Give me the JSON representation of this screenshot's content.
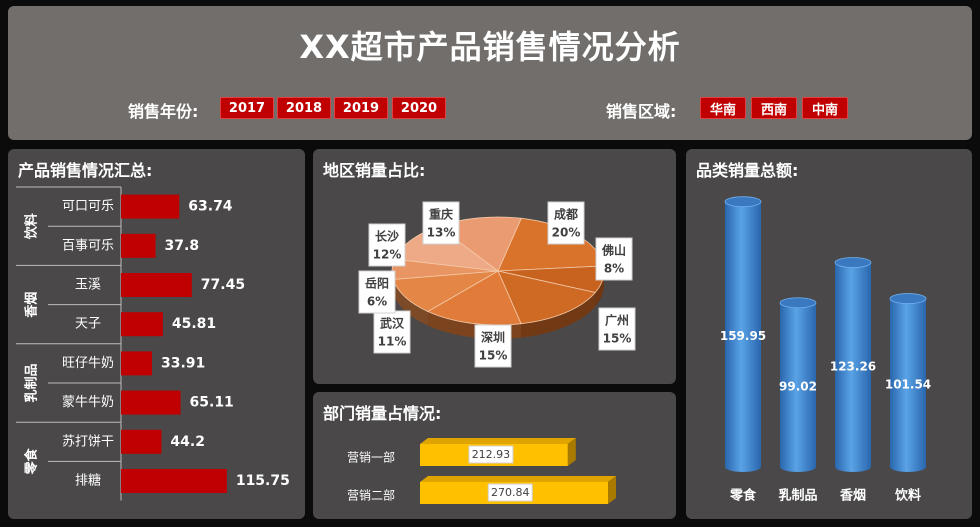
{
  "header": {
    "title": "XX超市产品销售情况分析",
    "year_label": "销售年份:",
    "years": [
      "2017",
      "2018",
      "2019",
      "2020"
    ],
    "region_label": "销售区域:",
    "regions": [
      "华南",
      "西南",
      "中南"
    ]
  },
  "panels": {
    "product_title": "产品销售情况汇总:",
    "region_title": "地区销量占比:",
    "dept_title": "部门销量占情况:",
    "category_title": "品类销量总额:"
  },
  "colors": {
    "bar_red": "#c00000",
    "pie_orange": "#e07b39",
    "dept_gold": "#ffc000",
    "cylinder_blue": "#3c85d0"
  },
  "chart_data": [
    {
      "type": "bar",
      "orientation": "horizontal",
      "groups": [
        {
          "name": "饮料",
          "items": [
            {
              "label": "可口可乐",
              "value": 63.74
            },
            {
              "label": "百事可乐",
              "value": 37.8
            }
          ]
        },
        {
          "name": "香烟",
          "items": [
            {
              "label": "玉溪",
              "value": 77.45
            },
            {
              "label": "天子",
              "value": 45.81
            }
          ]
        },
        {
          "name": "乳制品",
          "items": [
            {
              "label": "旺仔牛奶",
              "value": 33.91
            },
            {
              "label": "蒙牛牛奶",
              "value": 65.11
            }
          ]
        },
        {
          "name": "零食",
          "items": [
            {
              "label": "苏打饼干",
              "value": 44.2
            },
            {
              "label": "排糖",
              "value": 115.75
            }
          ]
        }
      ],
      "xlim": [
        0,
        140
      ]
    },
    {
      "type": "pie",
      "slices": [
        {
          "label": "成都",
          "value": 20,
          "pct": "20%",
          "color": "#d9722b"
        },
        {
          "label": "佛山",
          "value": 8,
          "pct": "8%",
          "color": "#c8621f"
        },
        {
          "label": "广州",
          "value": 15,
          "pct": "15%",
          "color": "#cf6a24"
        },
        {
          "label": "深圳",
          "value": 15,
          "pct": "15%",
          "color": "#e07b39"
        },
        {
          "label": "武汉",
          "value": 11,
          "pct": "11%",
          "color": "#e38646"
        },
        {
          "label": "岳阳",
          "value": 6,
          "pct": "6%",
          "color": "#e99463"
        },
        {
          "label": "长沙",
          "value": 12,
          "pct": "12%",
          "color": "#eeaa86"
        },
        {
          "label": "重庆",
          "value": 13,
          "pct": "13%",
          "color": "#eb9b72"
        }
      ]
    },
    {
      "type": "bar",
      "orientation": "horizontal",
      "categories": [
        "营销一部",
        "营销二部"
      ],
      "values": [
        212.93,
        270.84
      ],
      "value_labels": [
        "212.93",
        "270.84"
      ]
    },
    {
      "type": "bar",
      "style": "cylinder",
      "categories": [
        "零食",
        "乳制品",
        "香烟",
        "饮料"
      ],
      "values": [
        159.95,
        99.02,
        123.26,
        101.54
      ],
      "value_labels": [
        "159.95",
        "99.02",
        "123.26",
        "101.54"
      ],
      "ylim": [
        0,
        170
      ]
    }
  ]
}
